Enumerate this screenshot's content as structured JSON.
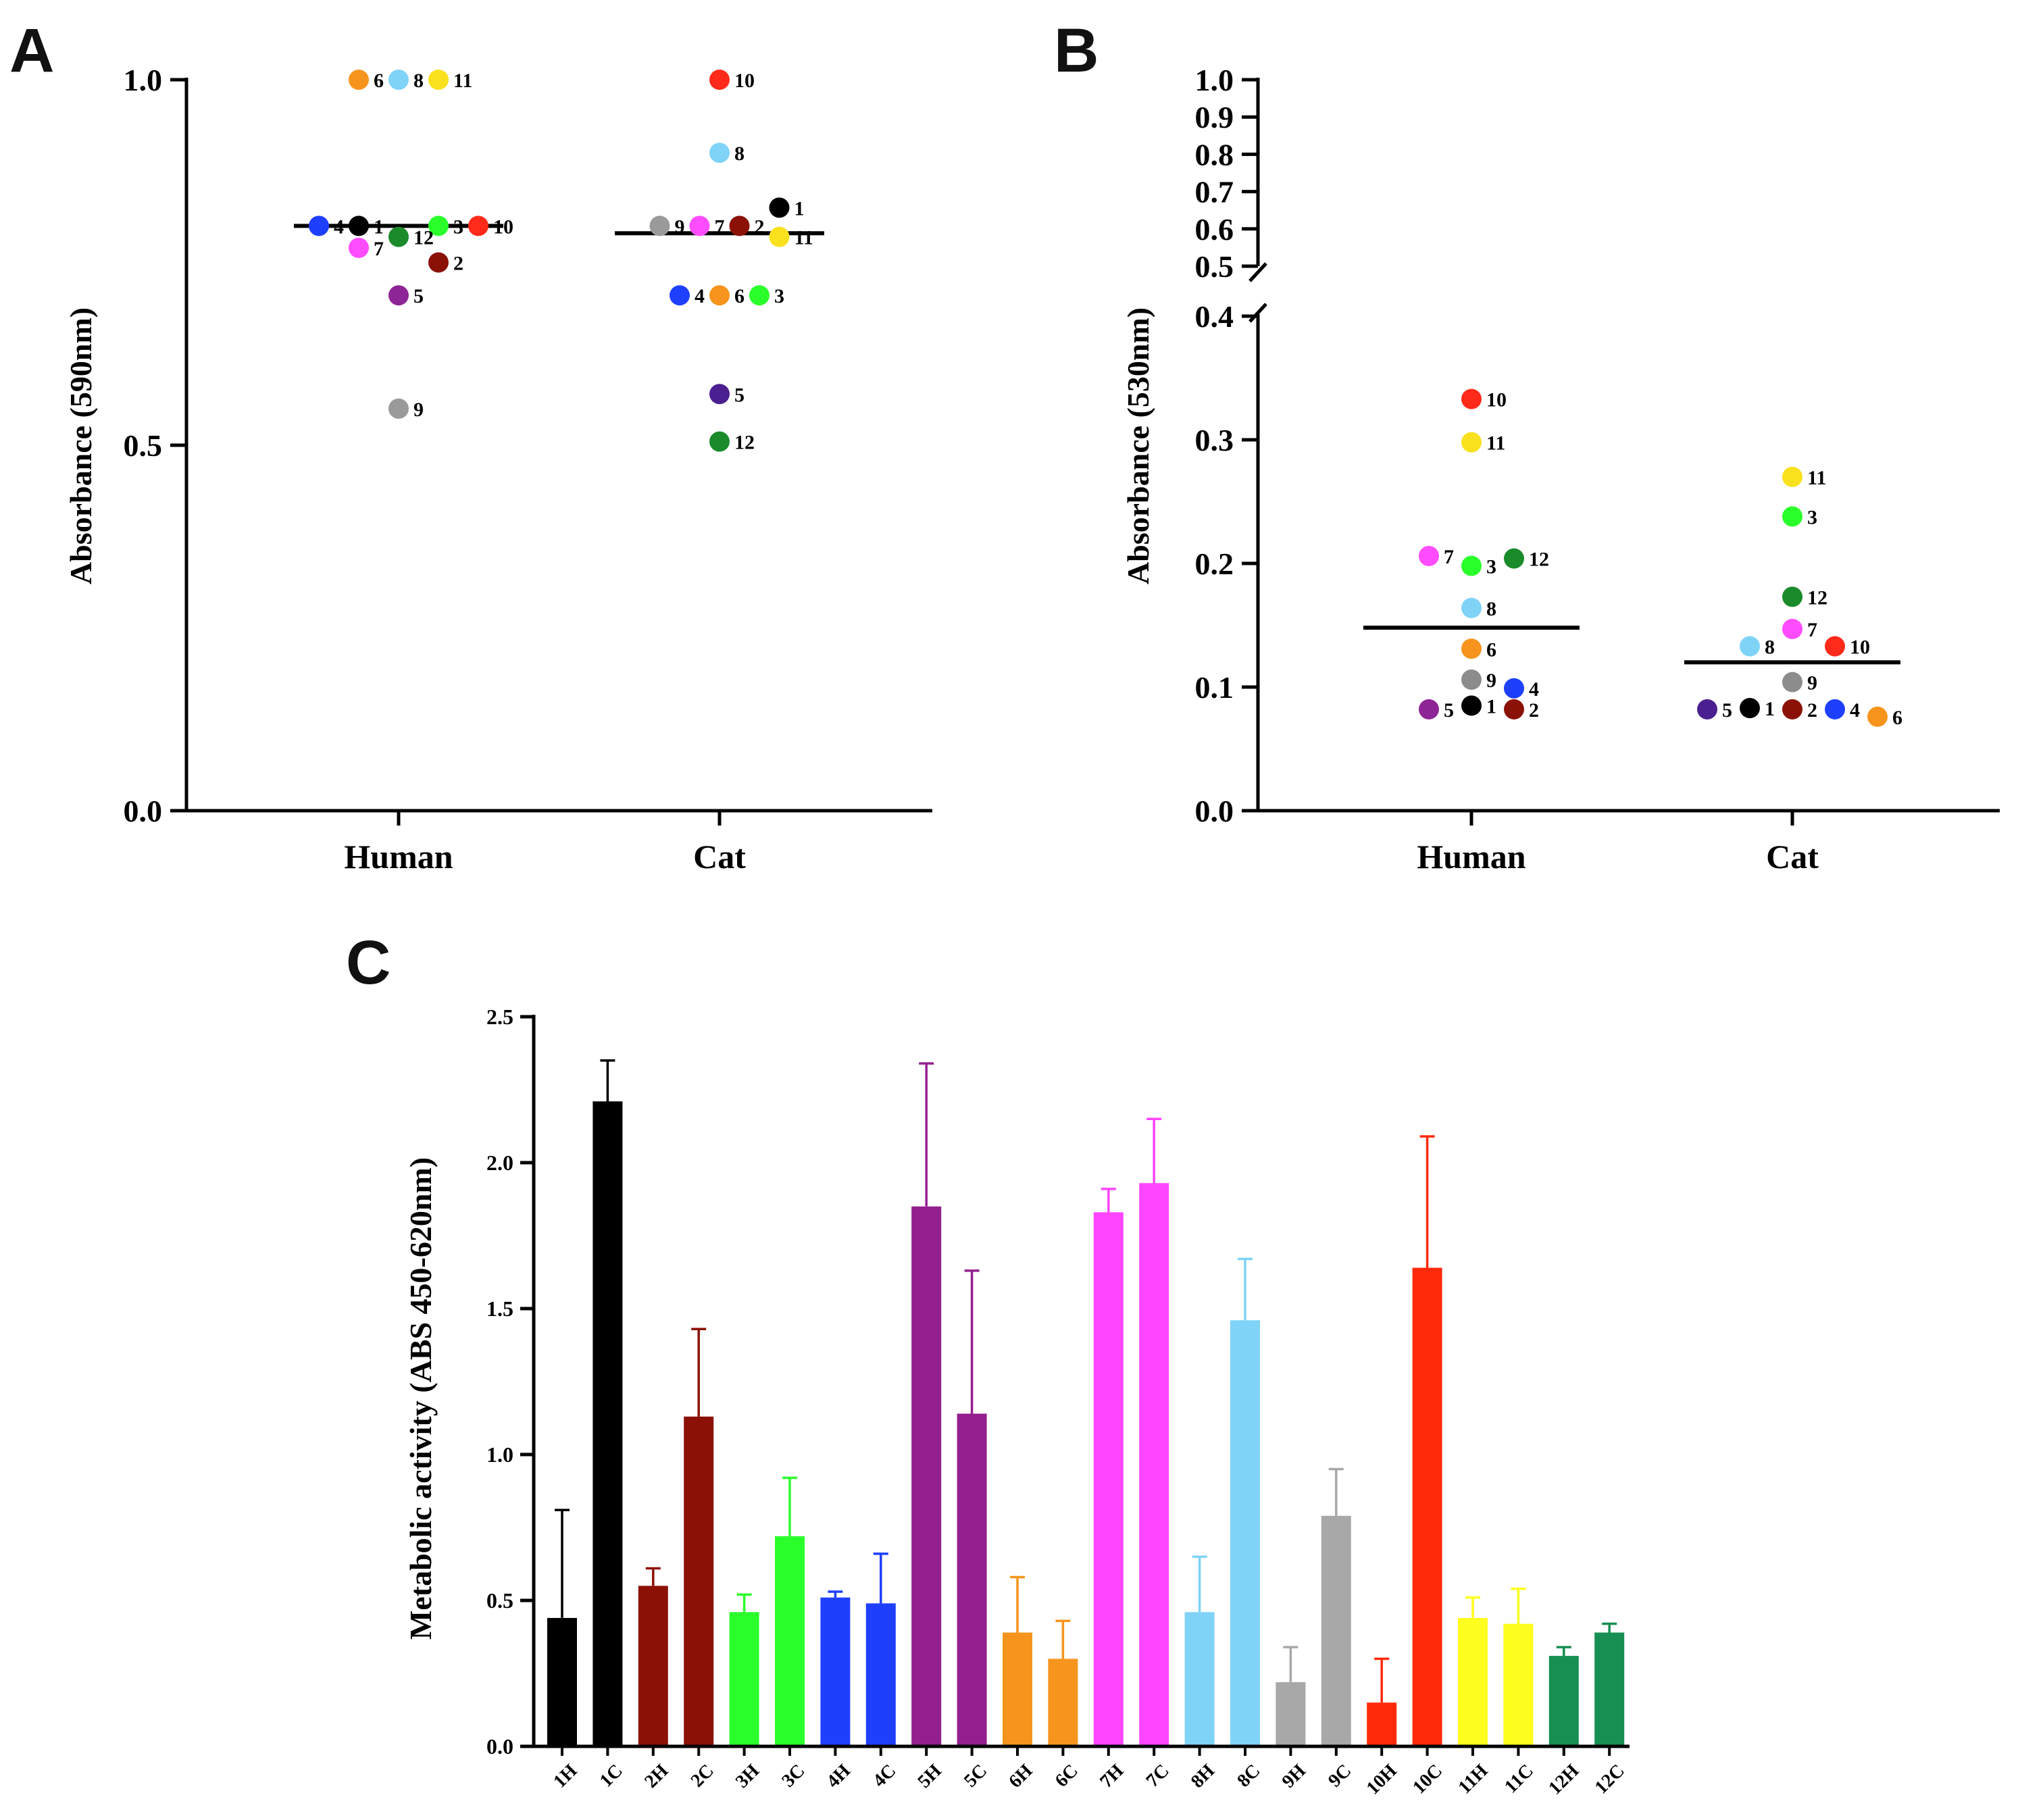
{
  "chart_data": [
    {
      "panel": "A",
      "type": "scatter",
      "ylabel": "Absorbance (590nm)",
      "categories": [
        "Human",
        "Cat"
      ],
      "ylim": [
        0,
        1.0
      ],
      "yticks": [
        "0.0",
        "0.5",
        "1.0"
      ],
      "ytick_values": [
        0,
        0.5,
        1.0
      ],
      "mean_lines": [
        0.8,
        0.79
      ],
      "series": [
        {
          "category": "Human",
          "points": [
            {
              "label": "6",
              "y": 1.0,
              "offset": -1,
              "color": "#f7941d"
            },
            {
              "label": "8",
              "y": 1.0,
              "offset": 0,
              "color": "#7fd3f7"
            },
            {
              "label": "11",
              "y": 1.0,
              "offset": 1,
              "color": "#f9e11e"
            },
            {
              "label": "4",
              "y": 0.8,
              "offset": -2,
              "color": "#1f3fff"
            },
            {
              "label": "1",
              "y": 0.8,
              "offset": -1,
              "color": "#000000"
            },
            {
              "label": "3",
              "y": 0.8,
              "offset": 1,
              "color": "#2bff2b"
            },
            {
              "label": "10",
              "y": 0.8,
              "offset": 2,
              "color": "#ff2a1a"
            },
            {
              "label": "7",
              "y": 0.77,
              "offset": -1,
              "color": "#ff4cff"
            },
            {
              "label": "12",
              "y": 0.785,
              "offset": 0,
              "color": "#1a8a2a"
            },
            {
              "label": "2",
              "y": 0.75,
              "offset": 1,
              "color": "#8b1106"
            },
            {
              "label": "5",
              "y": 0.705,
              "offset": 0,
              "color": "#8e2596"
            },
            {
              "label": "9",
              "y": 0.55,
              "offset": 0,
              "color": "#9a9a9a"
            }
          ]
        },
        {
          "category": "Cat",
          "points": [
            {
              "label": "10",
              "y": 1.0,
              "offset": 0,
              "color": "#ff2a1a"
            },
            {
              "label": "8",
              "y": 0.9,
              "offset": 0,
              "color": "#7fd3f7"
            },
            {
              "label": "1",
              "y": 0.825,
              "offset": 1.5,
              "color": "#000000"
            },
            {
              "label": "9",
              "y": 0.8,
              "offset": -1.5,
              "color": "#9a9a9a"
            },
            {
              "label": "7",
              "y": 0.8,
              "offset": -0.5,
              "color": "#ff4cff"
            },
            {
              "label": "2",
              "y": 0.8,
              "offset": 0.5,
              "color": "#8b1106"
            },
            {
              "label": "11",
              "y": 0.785,
              "offset": 1.5,
              "color": "#f9e11e"
            },
            {
              "label": "4",
              "y": 0.705,
              "offset": -1,
              "color": "#1f3fff"
            },
            {
              "label": "6",
              "y": 0.705,
              "offset": 0,
              "color": "#f7941d"
            },
            {
              "label": "3",
              "y": 0.705,
              "offset": 1,
              "color": "#2bff2b"
            },
            {
              "label": "5",
              "y": 0.57,
              "offset": 0,
              "color": "#4b1f8f"
            },
            {
              "label": "12",
              "y": 0.505,
              "offset": 0,
              "color": "#1a8a2a"
            }
          ]
        }
      ]
    },
    {
      "panel": "B",
      "type": "scatter",
      "ylabel": "Absorbance (530nm)",
      "categories": [
        "Human",
        "Cat"
      ],
      "ylim_lower": [
        0,
        0.4
      ],
      "ylim_upper": [
        0.5,
        1.0
      ],
      "yticks_lower": [
        "0.0",
        "0.1",
        "0.2",
        "0.3",
        "0.4"
      ],
      "ytick_values_lower": [
        0,
        0.1,
        0.2,
        0.3,
        0.4
      ],
      "yticks_upper": [
        "0.5",
        "0.6",
        "0.7",
        "0.8",
        "0.9",
        "1.0"
      ],
      "ytick_values_upper": [
        0.5,
        0.6,
        0.7,
        0.8,
        0.9,
        1.0
      ],
      "axis_break": [
        0.4,
        0.5
      ],
      "mean_lines": [
        0.148,
        0.12
      ],
      "series": [
        {
          "category": "Human",
          "points": [
            {
              "label": "10",
              "y": 0.333,
              "offset": 0,
              "color": "#ff2a1a"
            },
            {
              "label": "11",
              "y": 0.298,
              "offset": 0,
              "color": "#f9e11e"
            },
            {
              "label": "7",
              "y": 0.206,
              "offset": -1,
              "color": "#ff4cff"
            },
            {
              "label": "3",
              "y": 0.198,
              "offset": 0,
              "color": "#2bff2b"
            },
            {
              "label": "12",
              "y": 0.204,
              "offset": 1,
              "color": "#1a8a2a"
            },
            {
              "label": "8",
              "y": 0.164,
              "offset": 0,
              "color": "#7fd3f7"
            },
            {
              "label": "6",
              "y": 0.131,
              "offset": 0,
              "color": "#f7941d"
            },
            {
              "label": "9",
              "y": 0.106,
              "offset": 0,
              "color": "#8c8c8c"
            },
            {
              "label": "4",
              "y": 0.099,
              "offset": 1,
              "color": "#1f3fff"
            },
            {
              "label": "5",
              "y": 0.082,
              "offset": -1,
              "color": "#8e2596"
            },
            {
              "label": "1",
              "y": 0.085,
              "offset": 0,
              "color": "#000000"
            },
            {
              "label": "2",
              "y": 0.082,
              "offset": 1,
              "color": "#8b1106"
            }
          ]
        },
        {
          "category": "Cat",
          "points": [
            {
              "label": "11",
              "y": 0.27,
              "offset": 0,
              "color": "#f9e11e"
            },
            {
              "label": "3",
              "y": 0.238,
              "offset": 0,
              "color": "#2bff2b"
            },
            {
              "label": "12",
              "y": 0.173,
              "offset": 0,
              "color": "#1a8a2a"
            },
            {
              "label": "7",
              "y": 0.147,
              "offset": 0,
              "color": "#ff4cff"
            },
            {
              "label": "8",
              "y": 0.133,
              "offset": -1,
              "color": "#7fd3f7"
            },
            {
              "label": "10",
              "y": 0.133,
              "offset": 1,
              "color": "#ff2a1a"
            },
            {
              "label": "9",
              "y": 0.104,
              "offset": 0,
              "color": "#8c8c8c"
            },
            {
              "label": "5",
              "y": 0.082,
              "offset": -2,
              "color": "#4b1f8f"
            },
            {
              "label": "1",
              "y": 0.083,
              "offset": -1,
              "color": "#000000"
            },
            {
              "label": "2",
              "y": 0.082,
              "offset": 0,
              "color": "#8b1106"
            },
            {
              "label": "4",
              "y": 0.082,
              "offset": 1,
              "color": "#1f3fff"
            },
            {
              "label": "6",
              "y": 0.076,
              "offset": 2,
              "color": "#f7941d"
            }
          ]
        }
      ]
    },
    {
      "panel": "C",
      "type": "bar",
      "ylabel": "Metabolic activity (ABS 450-620nm)",
      "ylim": [
        0,
        2.5
      ],
      "yticks": [
        "0.0",
        "0.5",
        "1.0",
        "1.5",
        "2.0",
        "2.5"
      ],
      "ytick_values": [
        0,
        0.5,
        1.0,
        1.5,
        2.0,
        2.5
      ],
      "categories": [
        "1H",
        "1C",
        "2H",
        "2C",
        "3H",
        "3C",
        "4H",
        "4C",
        "5H",
        "5C",
        "6H",
        "6C",
        "7H",
        "7C",
        "8H",
        "8C",
        "9H",
        "9C",
        "10H",
        "10C",
        "11H",
        "11C",
        "12H",
        "12C"
      ],
      "values": [
        0.44,
        2.21,
        0.55,
        1.13,
        0.46,
        0.72,
        0.51,
        0.49,
        1.85,
        1.14,
        0.39,
        0.3,
        1.83,
        1.93,
        0.46,
        1.46,
        0.22,
        0.79,
        0.15,
        1.64,
        0.44,
        0.42,
        0.31,
        0.39
      ],
      "errors": [
        0.37,
        0.14,
        0.06,
        0.3,
        0.06,
        0.2,
        0.02,
        0.17,
        0.49,
        0.49,
        0.19,
        0.13,
        0.08,
        0.22,
        0.19,
        0.21,
        0.12,
        0.16,
        0.15,
        0.45,
        0.07,
        0.12,
        0.03,
        0.03
      ],
      "colors": [
        "#000000",
        "#000000",
        "#8b1106",
        "#8b1106",
        "#2bff2b",
        "#2bff2b",
        "#1f3fff",
        "#1f3fff",
        "#931f8f",
        "#931f8f",
        "#f7941d",
        "#f7941d",
        "#ff45ff",
        "#ff45ff",
        "#7fd3f7",
        "#7fd3f7",
        "#a8a8a8",
        "#a8a8a8",
        "#ff2a0a",
        "#ff2a0a",
        "#ffff1f",
        "#ffff1f",
        "#178f52",
        "#178f52"
      ]
    }
  ]
}
